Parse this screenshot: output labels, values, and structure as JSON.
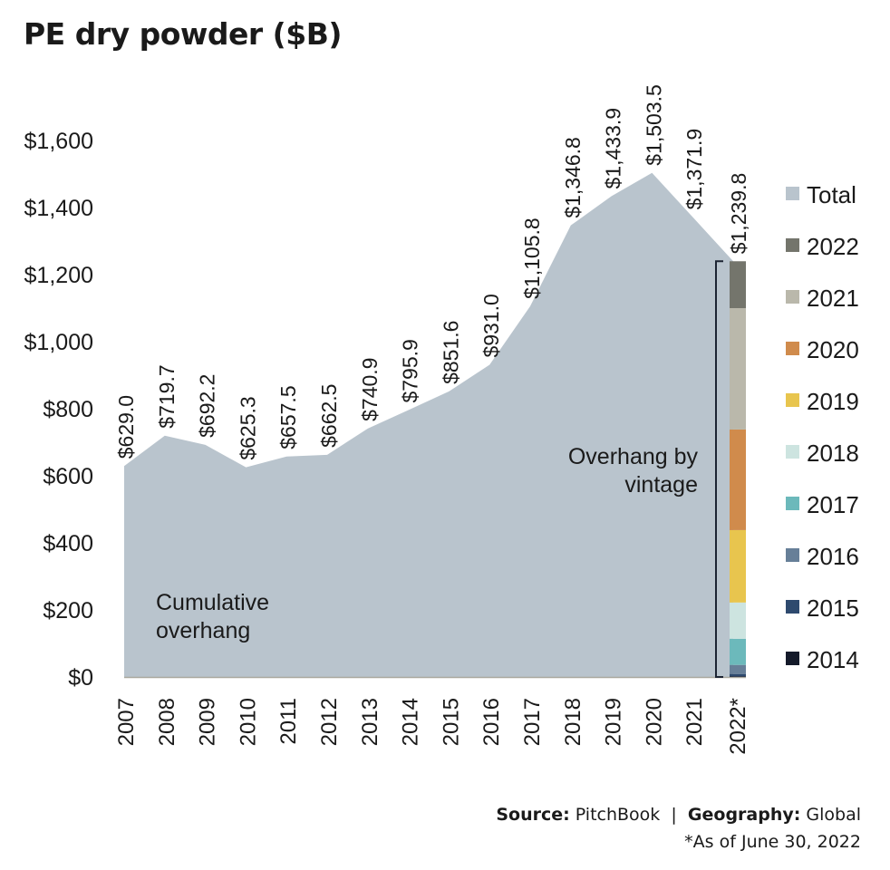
{
  "title": "PE dry powder ($B)",
  "footer": {
    "source_label": "Source:",
    "source_value": "PitchBook",
    "separator": "|",
    "geography_label": "Geography:",
    "geography_value": "Global",
    "note": "*As of June 30, 2022"
  },
  "chart_data": {
    "type": "area",
    "title": "PE dry powder ($B)",
    "xlabel": "",
    "ylabel": "",
    "ylim": [
      0,
      1600
    ],
    "yticks": [
      0,
      200,
      400,
      600,
      800,
      1000,
      1200,
      1400,
      1600
    ],
    "ytick_labels": [
      "$0",
      "$200",
      "$400",
      "$600",
      "$800",
      "$1,000",
      "$1,200",
      "$1,400",
      "$1,600"
    ],
    "categories": [
      "2007",
      "2008",
      "2009",
      "2010",
      "2011",
      "2012",
      "2013",
      "2014",
      "2015",
      "2016",
      "2017",
      "2018",
      "2019",
      "2020",
      "2021",
      "2022*"
    ],
    "series": [
      {
        "name": "Total",
        "color": "#b9c4cd",
        "values": [
          629.0,
          719.7,
          692.2,
          625.3,
          657.5,
          662.5,
          740.9,
          795.9,
          851.6,
          931.0,
          1105.8,
          1346.8,
          1433.9,
          1503.5,
          1371.9,
          1239.8
        ],
        "labels": [
          "$629.0",
          "$719.7",
          "$692.2",
          "$625.3",
          "$657.5",
          "$662.5",
          "$740.9",
          "$795.9",
          "$851.6",
          "$931.0",
          "$1,105.8",
          "$1,346.8",
          "$1,433.9",
          "$1,503.5",
          "$1,371.9",
          "$1,239.8"
        ]
      }
    ],
    "stacked_bar": {
      "category": "2022*",
      "segments": [
        {
          "name": "2014",
          "color": "#141a2a",
          "value": 2
        },
        {
          "name": "2015",
          "color": "#2e4a6e",
          "value": 7
        },
        {
          "name": "2016",
          "color": "#677f98",
          "value": 27
        },
        {
          "name": "2017",
          "color": "#6cb9bb",
          "value": 78
        },
        {
          "name": "2018",
          "color": "#cde4e0",
          "value": 108
        },
        {
          "name": "2019",
          "color": "#e8c54e",
          "value": 216
        },
        {
          "name": "2020",
          "color": "#d08b4c",
          "value": 300
        },
        {
          "name": "2021",
          "color": "#bab8ab",
          "value": 362
        },
        {
          "name": "2022",
          "color": "#74756c",
          "value": 139.8
        }
      ]
    },
    "legend": {
      "position": "right",
      "entries": [
        {
          "label": "Total",
          "color": "#b9c4cd"
        },
        {
          "label": "2022",
          "color": "#74756c"
        },
        {
          "label": "2021",
          "color": "#bab8ab"
        },
        {
          "label": "2020",
          "color": "#d08b4c"
        },
        {
          "label": "2019",
          "color": "#e8c54e"
        },
        {
          "label": "2018",
          "color": "#cde4e0"
        },
        {
          "label": "2017",
          "color": "#6cb9bb"
        },
        {
          "label": "2016",
          "color": "#677f98"
        },
        {
          "label": "2015",
          "color": "#2e4a6e"
        },
        {
          "label": "2014",
          "color": "#141a2a"
        }
      ]
    },
    "annotations": [
      {
        "text_lines": [
          "Cumulative",
          "overhang"
        ],
        "anchor": "lower-left"
      },
      {
        "text_lines": [
          "Overhang by",
          "vintage"
        ],
        "anchor": "right, near 2022 bar"
      }
    ],
    "grid": false
  }
}
